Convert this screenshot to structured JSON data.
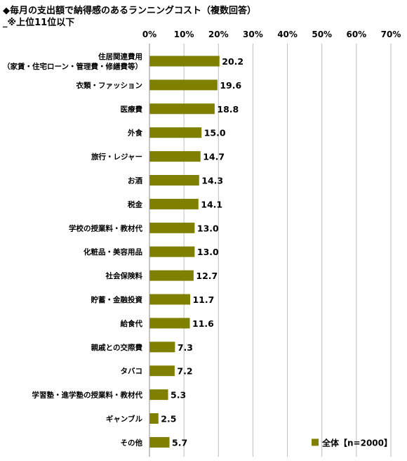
{
  "header": {
    "title": "◆毎月の支出額で納得感のあるランニングコスト（複数回答）",
    "subtitle": "_※上位11位以下"
  },
  "chart_data": {
    "type": "bar",
    "orientation": "horizontal",
    "categories": [
      [
        "住居関連費用",
        "（家賃・住宅ローン・管理費・修繕費等）"
      ],
      [
        "衣類・ファッション"
      ],
      [
        "医療費"
      ],
      [
        "外食"
      ],
      [
        "旅行・レジャー"
      ],
      [
        "お酒"
      ],
      [
        "税金"
      ],
      [
        "学校の授業料・教材代"
      ],
      [
        "化粧品・美容用品"
      ],
      [
        "社会保険料"
      ],
      [
        "貯蓄・金融投資"
      ],
      [
        "給食代"
      ],
      [
        "親戚との交際費"
      ],
      [
        "タバコ"
      ],
      [
        "学習塾・進学塾の授業料・教材代"
      ],
      [
        "ギャンブル"
      ],
      [
        "その他"
      ]
    ],
    "series": [
      {
        "name": "全体【n=2000】",
        "color": "#808000",
        "values": [
          20.2,
          19.6,
          18.8,
          15.0,
          14.7,
          14.3,
          14.1,
          13.0,
          13.0,
          12.7,
          11.7,
          11.6,
          7.3,
          7.2,
          5.3,
          2.5,
          5.7
        ]
      }
    ],
    "value_labels": [
      "20.2",
      "19.6",
      "18.8",
      "15.0",
      "14.7",
      "14.3",
      "14.1",
      "13.0",
      "13.0",
      "12.7",
      "11.7",
      "11.6",
      "7.3",
      "7.2",
      "5.3",
      "2.5",
      "5.7"
    ],
    "xlim": [
      0,
      70
    ],
    "x_ticks": [
      "0%",
      "10%",
      "20%",
      "30%",
      "40%",
      "50%",
      "60%",
      "70%"
    ],
    "axis_position": "top",
    "grid": true,
    "legend_position": "bottom-right"
  }
}
